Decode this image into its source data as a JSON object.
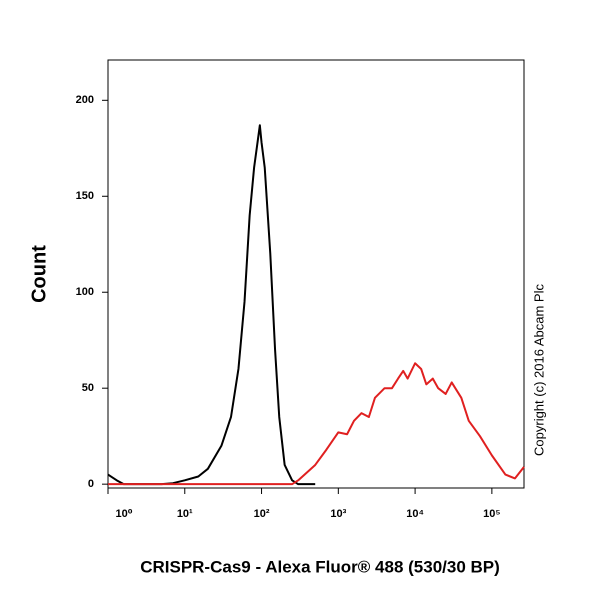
{
  "chart_data": {
    "type": "line",
    "xlabel": "CRISPR-Cas9 - Alexa Fluor® 488 (530/30 BP)",
    "ylabel": "Count",
    "annotation": "Copyright (c) 2016 Abcam Plc",
    "xscale": "log",
    "x": [
      1,
      1.3,
      1.6,
      2,
      3,
      5,
      7,
      10,
      15,
      20,
      30,
      40,
      50,
      60,
      70,
      80,
      90,
      95,
      100,
      110,
      130,
      150,
      170,
      200,
      250,
      300,
      500,
      700,
      1000,
      1300,
      1600,
      2000,
      2500,
      3000,
      4000,
      5000,
      6000,
      7000,
      8000,
      10000,
      12000,
      14000,
      17000,
      20000,
      25000,
      30000,
      40000,
      50000,
      70000,
      100000,
      150000,
      200000,
      262144
    ],
    "series": [
      {
        "color": "#000000",
        "values": [
          5,
          2,
          0,
          0,
          0,
          0,
          0.5,
          2,
          4,
          8,
          20,
          35,
          60,
          95,
          140,
          165,
          180,
          187,
          178,
          165,
          120,
          70,
          35,
          10,
          2,
          0,
          0,
          null,
          null,
          null,
          null,
          null,
          null,
          null,
          null,
          null,
          null,
          null,
          null,
          null,
          null,
          null,
          null,
          null,
          null,
          null,
          null,
          null,
          null,
          null,
          null,
          null,
          null
        ]
      },
      {
        "color": "#e02020",
        "values": [
          0,
          0,
          0,
          0,
          0,
          0,
          0,
          0,
          0,
          0,
          0,
          0,
          0,
          0,
          0,
          0,
          0,
          0,
          0,
          0,
          0,
          0,
          0,
          0,
          0,
          2,
          10,
          18,
          27,
          26,
          33,
          37,
          35,
          45,
          50,
          50,
          55,
          59,
          55,
          63,
          60,
          52,
          55,
          50,
          47,
          53,
          45,
          33,
          25,
          15,
          5,
          3,
          9
        ]
      }
    ],
    "xlim": [
      1,
      262144
    ],
    "ylim": [
      -2,
      221
    ],
    "xticks": [
      {
        "value": 1,
        "label": "10⁰"
      },
      {
        "value": 10,
        "label": "10¹"
      },
      {
        "value": 100,
        "label": "10²"
      },
      {
        "value": 1000,
        "label": "10³"
      },
      {
        "value": 10000,
        "label": "10⁴"
      },
      {
        "value": 100000,
        "label": "10⁵"
      }
    ],
    "yticks": [
      0,
      50,
      100,
      150,
      200
    ],
    "grid": false
  }
}
